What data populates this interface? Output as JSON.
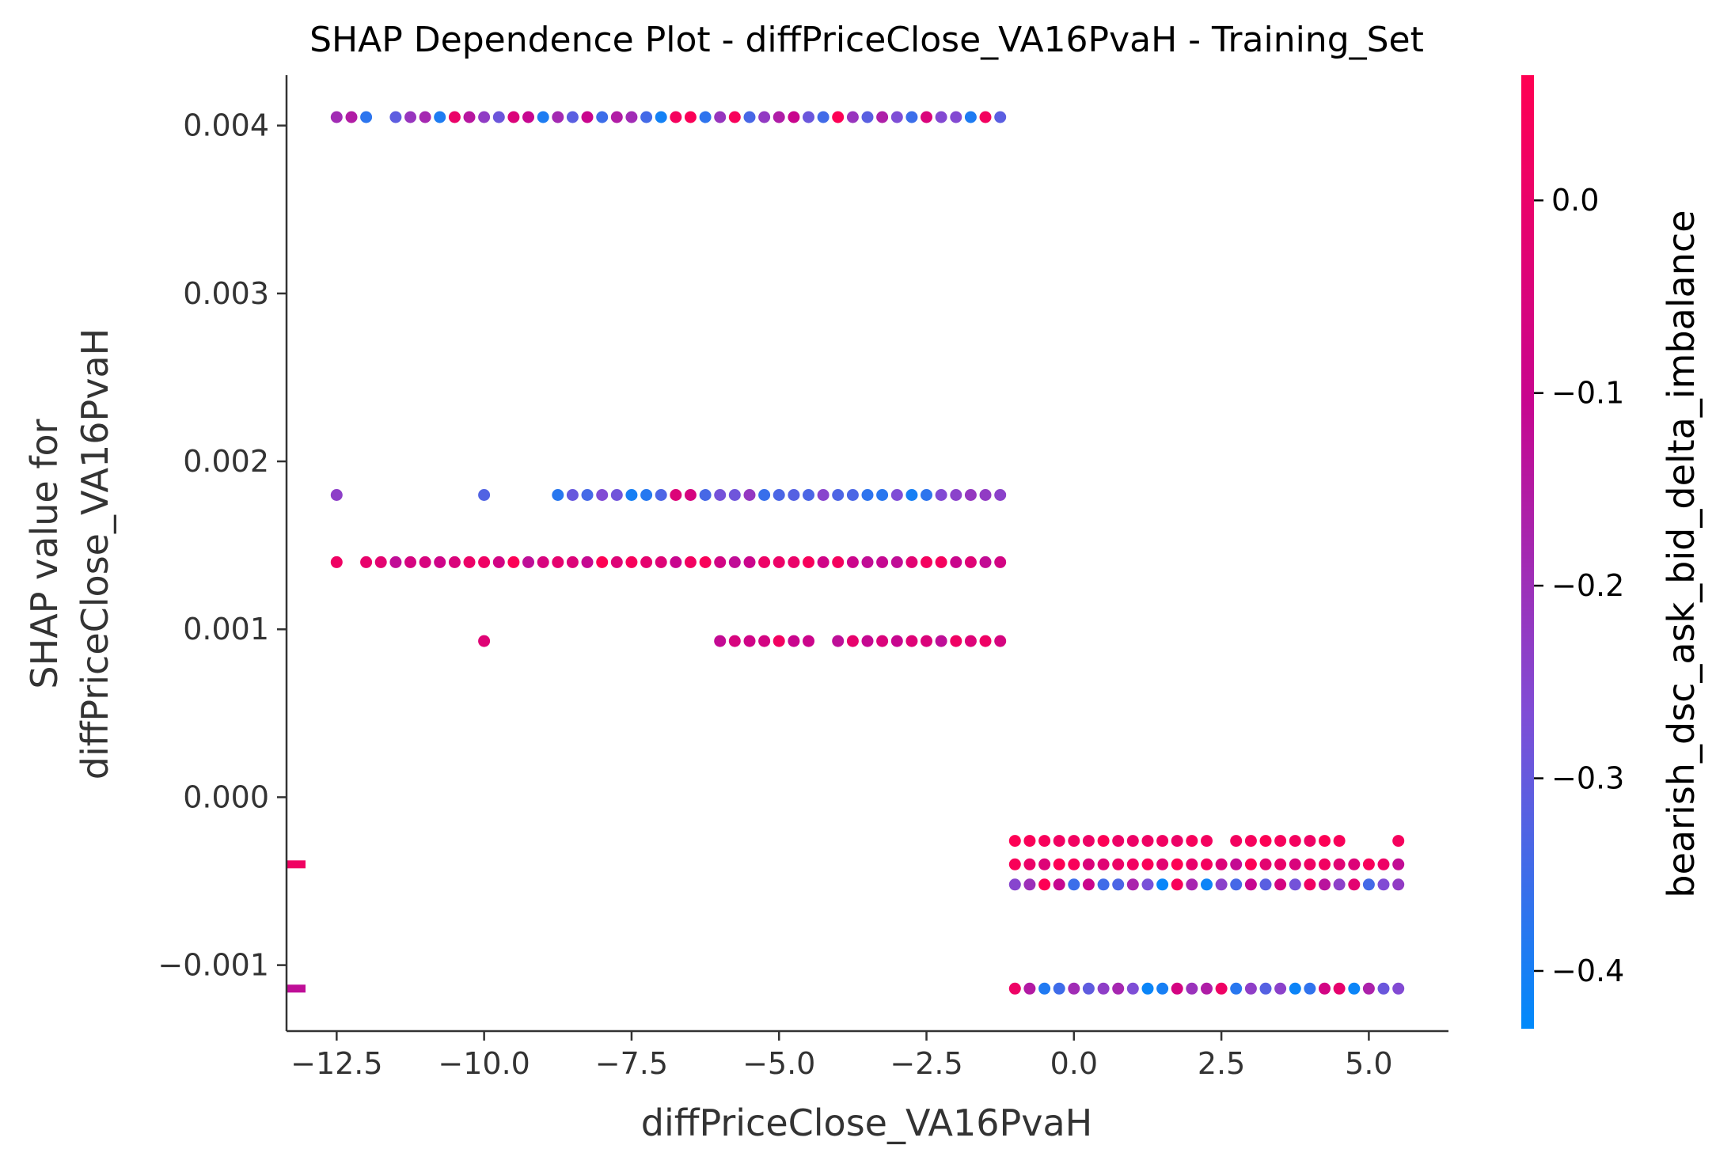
{
  "chart_data": {
    "type": "scatter",
    "title": "SHAP Dependence Plot - diffPriceClose_VA16PvaH - Training_Set",
    "xlabel": "diffPriceClose_VA16PvaH",
    "ylabel_lines": [
      "SHAP value for",
      "diffPriceClose_VA16PvaH"
    ],
    "xlim": [
      -13.35,
      6.35
    ],
    "ylim": [
      -0.0013929,
      0.0043
    ],
    "xticks": [
      -12.5,
      -10.0,
      -7.5,
      -5.0,
      -2.5,
      0.0,
      2.5,
      5.0
    ],
    "xtick_labels": [
      "−12.5",
      "−10.0",
      "−7.5",
      "−5.0",
      "−2.5",
      "0.0",
      "2.5",
      "5.0"
    ],
    "yticks": [
      -0.001,
      0.0,
      0.001,
      0.002,
      0.003,
      0.004
    ],
    "ytick_labels": [
      "−0.001",
      "0.000",
      "0.001",
      "0.002",
      "0.003",
      "0.004"
    ],
    "colorbar": {
      "label": "bearish_dsc_ask_bid_delta_imbalance",
      "range": [
        -0.43,
        0.065
      ],
      "ticks": [
        0.0,
        -0.1,
        -0.2,
        -0.3,
        -0.4
      ],
      "tick_labels": [
        "0.0",
        "−0.1",
        "−0.2",
        "−0.3",
        "−0.4"
      ],
      "colors": [
        "#008afb",
        "#7f4dd6",
        "#c8058e",
        "#ff0052"
      ]
    },
    "missing_value_markers": [
      {
        "y": -0.0004,
        "color_value": 0.02
      },
      {
        "y": -0.00114,
        "color_value": -0.12
      }
    ],
    "rows": [
      {
        "y": 0.00405,
        "x_start": -12.5,
        "x_end": -1.25,
        "step": 0.25,
        "skip": [
          -11.75
        ],
        "colors": "mixed"
      },
      {
        "y": 0.0018,
        "x_points": [
          -12.5,
          -10.0
        ],
        "x_start": -8.75,
        "x_end": -1.25,
        "step": 0.25,
        "colors": "blue-purple"
      },
      {
        "y": 0.0014,
        "x_points": [
          -12.5
        ],
        "x_start": -12.0,
        "x_end": -1.25,
        "step": 0.25,
        "colors": "red-magenta"
      },
      {
        "y": 0.00093,
        "x_points": [
          -10.0
        ],
        "x_start": -6.0,
        "x_end": -1.25,
        "step": 0.25,
        "skip": [
          -4.25
        ],
        "colors": "red-magenta"
      },
      {
        "y": -0.00026,
        "x_start": -1.0,
        "x_end": 5.5,
        "step": 0.25,
        "skip": [
          2.5,
          4.75,
          5.0,
          5.25
        ],
        "colors": "red"
      },
      {
        "y": -0.0004,
        "x_start": -1.0,
        "x_end": 5.5,
        "step": 0.25,
        "colors": "red-magenta"
      },
      {
        "y": -0.00052,
        "x_start": -1.0,
        "x_end": 5.5,
        "step": 0.25,
        "colors": "mixed"
      },
      {
        "y": -0.00114,
        "x_start": -1.0,
        "x_end": 5.5,
        "step": 0.25,
        "colors": "mixed"
      }
    ]
  }
}
